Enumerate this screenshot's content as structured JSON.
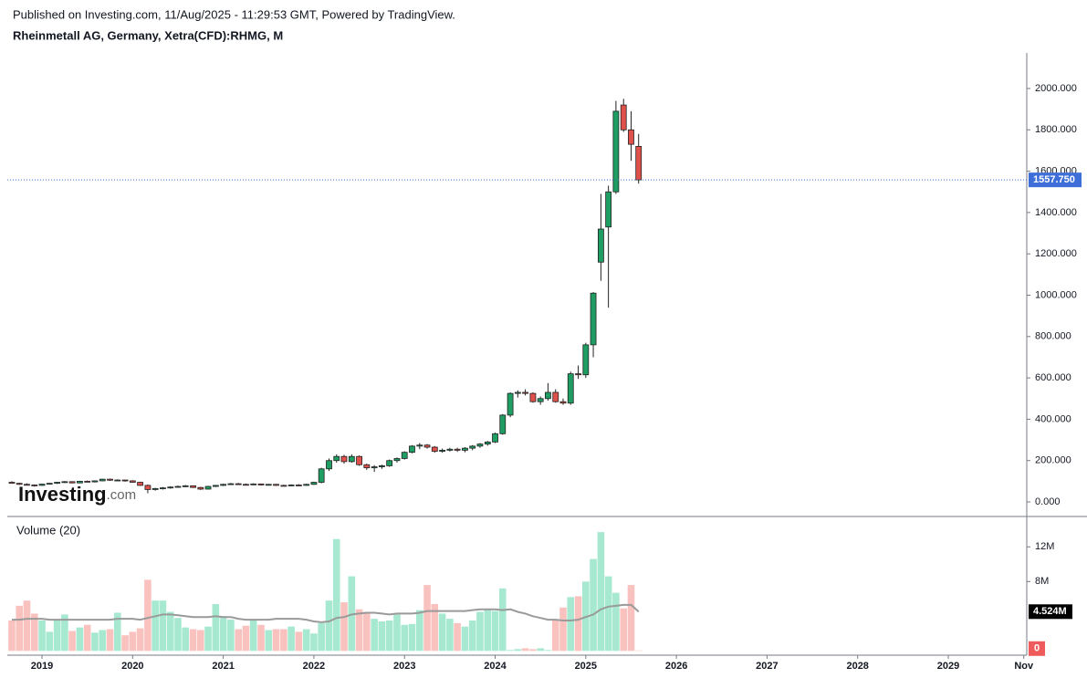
{
  "header": {
    "published": "Published on Investing.com, 11/Aug/2025 - 11:29:53 GMT, Powered by TradingView.",
    "symbol": "Rheinmetall AG, Germany, Xetra(CFD):RHMG, M"
  },
  "logo": {
    "main": "Investing",
    "suffix": ".com"
  },
  "chart_data": [
    {
      "type": "candlestick",
      "x": [
        2018.667,
        2018.75,
        2018.833,
        2018.917,
        2019.0,
        2019.083,
        2019.167,
        2019.25,
        2019.333,
        2019.417,
        2019.5,
        2019.583,
        2019.667,
        2019.75,
        2019.833,
        2019.917,
        2020.0,
        2020.083,
        2020.167,
        2020.25,
        2020.333,
        2020.417,
        2020.5,
        2020.583,
        2020.667,
        2020.75,
        2020.833,
        2020.917,
        2021.0,
        2021.083,
        2021.167,
        2021.25,
        2021.333,
        2021.417,
        2021.5,
        2021.583,
        2021.667,
        2021.75,
        2021.833,
        2021.917,
        2022.0,
        2022.083,
        2022.167,
        2022.25,
        2022.333,
        2022.417,
        2022.5,
        2022.583,
        2022.667,
        2022.75,
        2022.833,
        2022.917,
        2023.0,
        2023.083,
        2023.167,
        2023.25,
        2023.333,
        2023.417,
        2023.5,
        2023.583,
        2023.667,
        2023.75,
        2023.833,
        2023.917,
        2024.0,
        2024.083,
        2024.167,
        2024.25,
        2024.333,
        2024.417,
        2024.5,
        2024.583,
        2024.667,
        2024.75,
        2024.833,
        2024.917,
        2025.0,
        2025.083,
        2025.167,
        2025.25,
        2025.333,
        2025.417,
        2025.5,
        2025.583
      ],
      "open": [
        95,
        90,
        85,
        82,
        80,
        86,
        90,
        95,
        98,
        92,
        100,
        97,
        102,
        110,
        105,
        106,
        102,
        95,
        80,
        60,
        65,
        68,
        72,
        75,
        78,
        70,
        62,
        75,
        80,
        85,
        88,
        85,
        84,
        87,
        82,
        85,
        80,
        78,
        82,
        80,
        85,
        95,
        160,
        200,
        220,
        195,
        220,
        180,
        165,
        170,
        175,
        200,
        210,
        240,
        270,
        275,
        265,
        245,
        250,
        255,
        250,
        260,
        270,
        280,
        290,
        330,
        420,
        525,
        530,
        525,
        485,
        500,
        530,
        485,
        478,
        620,
        615,
        760,
        1160,
        1330,
        1500,
        1920,
        1800,
        1720
      ],
      "high": [
        100,
        93,
        90,
        85,
        88,
        92,
        97,
        101,
        100,
        102,
        104,
        104,
        112,
        113,
        109,
        108,
        105,
        98,
        84,
        68,
        72,
        76,
        79,
        82,
        80,
        73,
        78,
        82,
        88,
        92,
        92,
        89,
        90,
        89,
        87,
        87,
        83,
        85,
        86,
        88,
        98,
        165,
        210,
        230,
        228,
        230,
        225,
        185,
        178,
        180,
        205,
        215,
        245,
        275,
        285,
        280,
        270,
        258,
        262,
        262,
        265,
        275,
        285,
        295,
        335,
        425,
        530,
        540,
        545,
        530,
        510,
        575,
        545,
        500,
        630,
        660,
        770,
        1015,
        1490,
        1530,
        1940,
        1950,
        1890,
        1780
      ],
      "low": [
        88,
        82,
        80,
        74,
        78,
        84,
        87,
        92,
        90,
        90,
        95,
        94,
        100,
        102,
        101,
        98,
        93,
        78,
        42,
        55,
        60,
        64,
        70,
        72,
        68,
        58,
        60,
        72,
        77,
        82,
        82,
        80,
        81,
        80,
        79,
        78,
        75,
        76,
        77,
        78,
        82,
        90,
        150,
        190,
        185,
        190,
        175,
        155,
        145,
        160,
        170,
        190,
        205,
        235,
        255,
        258,
        238,
        238,
        244,
        242,
        240,
        250,
        262,
        272,
        285,
        325,
        410,
        505,
        515,
        480,
        470,
        490,
        480,
        470,
        470,
        595,
        600,
        700,
        1070,
        940,
        1490,
        1790,
        1650,
        1540
      ],
      "close": [
        90,
        85,
        82,
        80,
        86,
        90,
        95,
        98,
        92,
        100,
        97,
        102,
        110,
        105,
        106,
        102,
        95,
        80,
        60,
        65,
        68,
        72,
        75,
        78,
        70,
        62,
        75,
        80,
        85,
        88,
        85,
        84,
        87,
        82,
        85,
        80,
        78,
        82,
        80,
        85,
        95,
        160,
        200,
        220,
        195,
        220,
        180,
        165,
        170,
        175,
        200,
        210,
        240,
        270,
        275,
        265,
        245,
        250,
        255,
        250,
        260,
        270,
        280,
        290,
        330,
        420,
        525,
        530,
        525,
        485,
        500,
        530,
        485,
        478,
        620,
        615,
        760,
        1010,
        1320,
        1500,
        1890,
        1800,
        1730,
        1557.75
      ],
      "up_color": "#1f9e63",
      "down_color": "#e0514b",
      "xlim": [
        2018.617,
        2029.866
      ],
      "ylim": [
        -66,
        2172
      ],
      "yticks": [
        {
          "value": 0,
          "label": "0.000"
        },
        {
          "value": 200,
          "label": "200.000"
        },
        {
          "value": 400,
          "label": "400.000"
        },
        {
          "value": 600,
          "label": "600.000"
        },
        {
          "value": 800,
          "label": "800.000"
        },
        {
          "value": 1000,
          "label": "1000.000"
        },
        {
          "value": 1200,
          "label": "1200.000"
        },
        {
          "value": 1400,
          "label": "1400.000"
        },
        {
          "value": 1600,
          "label": "1600.000"
        },
        {
          "value": 1800,
          "label": "1800.000"
        },
        {
          "value": 2000,
          "label": "2000.000"
        }
      ],
      "price_marker": {
        "value": 1557.75,
        "label": "1557.750",
        "color": "#3e6fd8"
      }
    },
    {
      "type": "volume",
      "title": "Volume (20)",
      "values": [
        3.5,
        5.2,
        5.8,
        4.3,
        3.5,
        2.2,
        3.5,
        4.2,
        2.3,
        2.7,
        3.0,
        2.1,
        2.4,
        2.5,
        4.4,
        1.8,
        2.2,
        2.6,
        8.2,
        5.8,
        5.8,
        4.5,
        3.8,
        2.7,
        2.5,
        2.4,
        2.8,
        5.4,
        4.0,
        3.6,
        2.5,
        2.9,
        3.6,
        3.0,
        2.4,
        2.5,
        2.5,
        2.8,
        2.2,
        2.5,
        2.0,
        3.2,
        5.8,
        12.9,
        5.6,
        8.6,
        4.8,
        4.5,
        3.7,
        3.4,
        3.5,
        4.2,
        3.0,
        3.1,
        4.7,
        7.6,
        5.4,
        4.3,
        3.7,
        3.2,
        2.8,
        3.5,
        4.5,
        4.8,
        4.6,
        7.2,
        0.1,
        0.2,
        0.3,
        0.2,
        0.3,
        0.1,
        3.6,
        5.0,
        6.2,
        6.3,
        8.0,
        10.6,
        13.7,
        8.6,
        6.7,
        4.9,
        7.6,
        0.05
      ],
      "up_color": "#a6e9d0",
      "down_color": "#f9c2bf",
      "ma": {
        "values": [
          3.6,
          3.6,
          3.7,
          3.7,
          3.7,
          3.6,
          3.6,
          3.6,
          3.6,
          3.6,
          3.6,
          3.6,
          3.6,
          3.6,
          3.7,
          3.7,
          3.7,
          3.6,
          3.8,
          4.0,
          4.2,
          4.2,
          4.1,
          4.0,
          3.9,
          3.9,
          3.9,
          4.0,
          3.9,
          3.9,
          3.7,
          3.6,
          3.6,
          3.6,
          3.6,
          3.7,
          3.7,
          3.7,
          3.7,
          3.6,
          3.4,
          3.3,
          3.4,
          3.8,
          3.9,
          4.2,
          4.3,
          4.4,
          4.4,
          4.3,
          4.2,
          4.3,
          4.3,
          4.3,
          4.4,
          4.6,
          4.6,
          4.6,
          4.6,
          4.6,
          4.6,
          4.7,
          4.8,
          4.8,
          4.8,
          4.7,
          4.8,
          4.5,
          4.3,
          4.0,
          3.8,
          3.6,
          3.6,
          3.5,
          3.5,
          3.6,
          3.9,
          4.2,
          4.8,
          5.1,
          5.2,
          5.3,
          5.3,
          4.524
        ],
        "color": "#9a9a9a"
      },
      "ma_marker": {
        "value": 4.524,
        "label": "4.524M",
        "color": "#000000"
      },
      "volume_marker": {
        "value": 0.05,
        "label": "0",
        "color": "#ef5b5b"
      },
      "xlim": [
        2018.617,
        2029.866
      ],
      "xticks": [
        2019,
        2020,
        2021,
        2022,
        2023,
        2024,
        2025,
        2026,
        2027,
        2028,
        2029,
        {
          "value": 2029.833,
          "label": "Nov"
        }
      ],
      "ylim": [
        -0.5,
        15.4
      ],
      "yticks": [
        {
          "value": 8,
          "label": "8M"
        },
        {
          "value": 12,
          "label": "12M"
        }
      ]
    }
  ]
}
